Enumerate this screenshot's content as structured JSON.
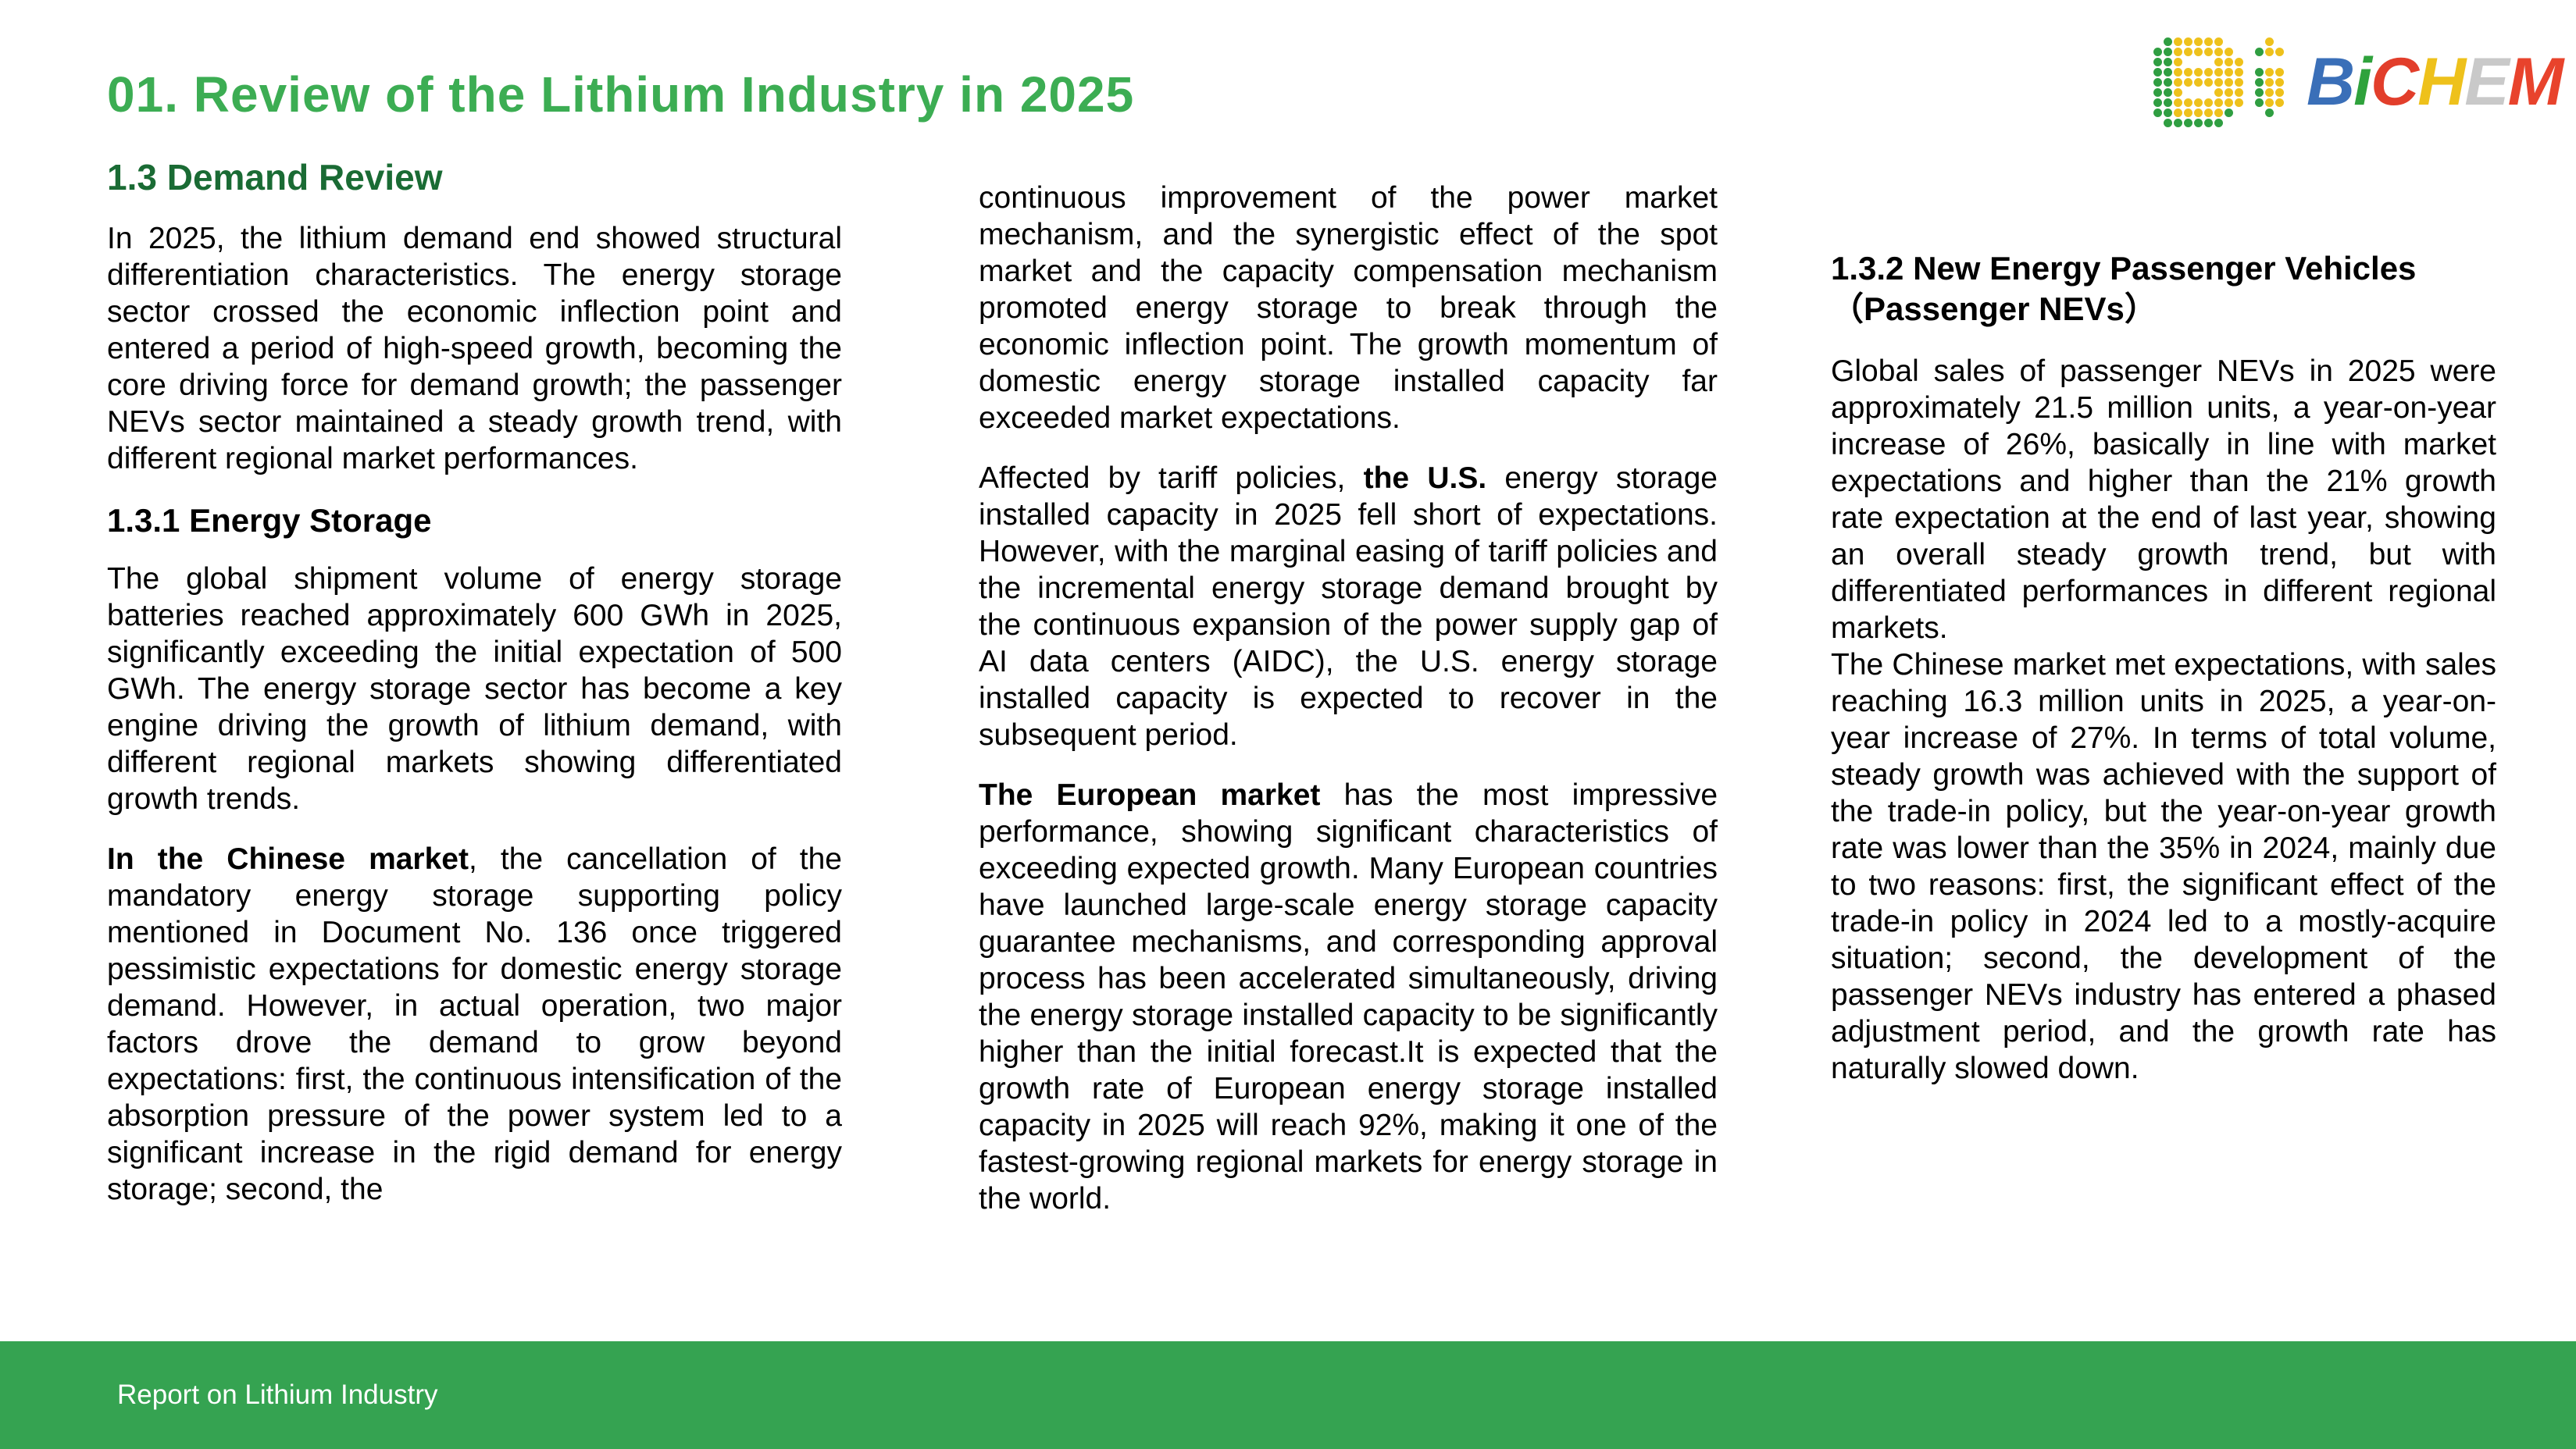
{
  "header": {
    "title": "01. Review of the Lithium Industry in 2025"
  },
  "logo": {
    "name": "BiCHEM",
    "letters": [
      {
        "ch": "B",
        "color": "#3a6fb8"
      },
      {
        "ch": "i",
        "color": "#2fa23c"
      },
      {
        "ch": "C",
        "color": "#e23e2b"
      },
      {
        "ch": "H",
        "color": "#eec11b"
      },
      {
        "ch": "E",
        "color": "#c9c9c9"
      },
      {
        "ch": "M",
        "color": "#e8432c"
      }
    ],
    "dot_colors": {
      "G": "#2f9e41",
      "Y": "#eec11b"
    },
    "dot_matrix": [
      ".GYYYYY....Y.",
      "GGYYYYYY..GYY",
      "GGY...YYY....",
      "GGYYYYYYY.GYY",
      "GGYYYYYYY.GYY",
      "GGY...YYY.GYY",
      "GGYYYYYYY.GYY",
      "GGYYYYYG...G.",
      ".GGGGGG......"
    ]
  },
  "colors": {
    "title_green": "#3cad53",
    "subheading_green": "#1a6b34",
    "footer_green": "#35a351",
    "body_text": "#000000"
  },
  "columns": [
    {
      "blocks": [
        {
          "type": "h2",
          "runs": [
            {
              "t": "1.3 Demand Review"
            }
          ]
        },
        {
          "type": "p",
          "runs": [
            {
              "t": "In 2025, the lithium demand end showed structural differentiation characteristics. The energy storage sector crossed the economic inflection point and entered a period of high-speed growth, becoming the core driving force for demand growth; the passenger NEVs sector maintained a steady growth trend, with different regional market performances."
            }
          ]
        },
        {
          "type": "h3",
          "runs": [
            {
              "t": "1.3.1 Energy Storage"
            }
          ]
        },
        {
          "type": "p",
          "runs": [
            {
              "t": "The global shipment volume of energy storage batteries reached approximately 600 GWh in 2025, significantly exceeding the initial expectation of 500 GWh. The energy storage sector has become a key engine driving the growth of lithium demand, with different regional markets showing differentiated growth trends."
            }
          ]
        },
        {
          "type": "p",
          "runs": [
            {
              "t": "In the Chinese market",
              "b": true
            },
            {
              "t": ", the cancellation of the mandatory energy storage supporting policy mentioned in Document No. 136 once triggered pessimistic expectations for domestic energy storage demand. However, in actual operation, two major factors drove the demand to grow beyond expectations: first, the continuous intensification of the absorption pressure of the power system led to a significant increase in the rigid demand for energy storage; second, the"
            }
          ]
        }
      ]
    },
    {
      "blocks": [
        {
          "type": "p",
          "runs": [
            {
              "t": "continuous improvement of the power market mechanism, and the synergistic effect of the spot market and the capacity compensation mechanism promoted energy storage to break through the economic inflection point. The growth momentum of domestic energy storage installed capacity far exceeded market expectations."
            }
          ]
        },
        {
          "type": "p",
          "runs": [
            {
              "t": "Affected by tariff policies, "
            },
            {
              "t": "the U.S.",
              "b": true
            },
            {
              "t": " energy storage installed capacity in 2025 fell short of expectations. However, with the marginal easing of tariff policies and the incremental energy storage demand brought by the continuous expansion of the power supply gap of AI data centers (AIDC), the U.S. energy storage installed capacity is expected to recover in the subsequent period."
            }
          ]
        },
        {
          "type": "p",
          "runs": [
            {
              "t": "The European market",
              "b": true
            },
            {
              "t": " has the most impressive performance, showing significant characteristics of exceeding expected growth. Many European countries have launched large-scale energy storage capacity guarantee mechanisms, and corresponding approval process has been accelerated simultaneously, driving the energy storage installed capacity to be significantly higher than the initial forecast.It is expected that the growth rate of European energy storage installed capacity in 2025 will reach 92%, making it one of the fastest-growing regional markets for energy storage in the world."
            }
          ]
        }
      ]
    },
    {
      "blocks": [
        {
          "type": "h3",
          "runs": [
            {
              "t": "1.3.2 New Energy Passenger Vehicles（Passenger NEVs）"
            }
          ]
        },
        {
          "type": "p",
          "runs": [
            {
              "t": "Global sales of passenger NEVs in 2025 were approximately 21.5 million units, a year-on-year increase of 26%, basically in line with market expectations and higher than the 21% growth rate expectation at the end of last year, showing an overall steady growth trend, but with differentiated performances in different regional markets."
            }
          ]
        },
        {
          "type": "p",
          "runs": [
            {
              "t": "The Chinese market met expectations, with sales reaching 16.3 million units in 2025, a year-on-year increase of 27%. In terms of total volume, steady growth was achieved with the support of the trade-in policy, but the year-on-year growth rate was lower than the 35% in 2024, mainly due to two reasons: first, the significant effect of the trade-in policy in 2024 led to a mostly-acquire situation; second, the development of the passenger NEVs industry has entered a phased adjustment period, and the growth rate has naturally slowed down."
            }
          ]
        }
      ]
    }
  ],
  "footer": {
    "text": "Report on Lithium Industry"
  }
}
